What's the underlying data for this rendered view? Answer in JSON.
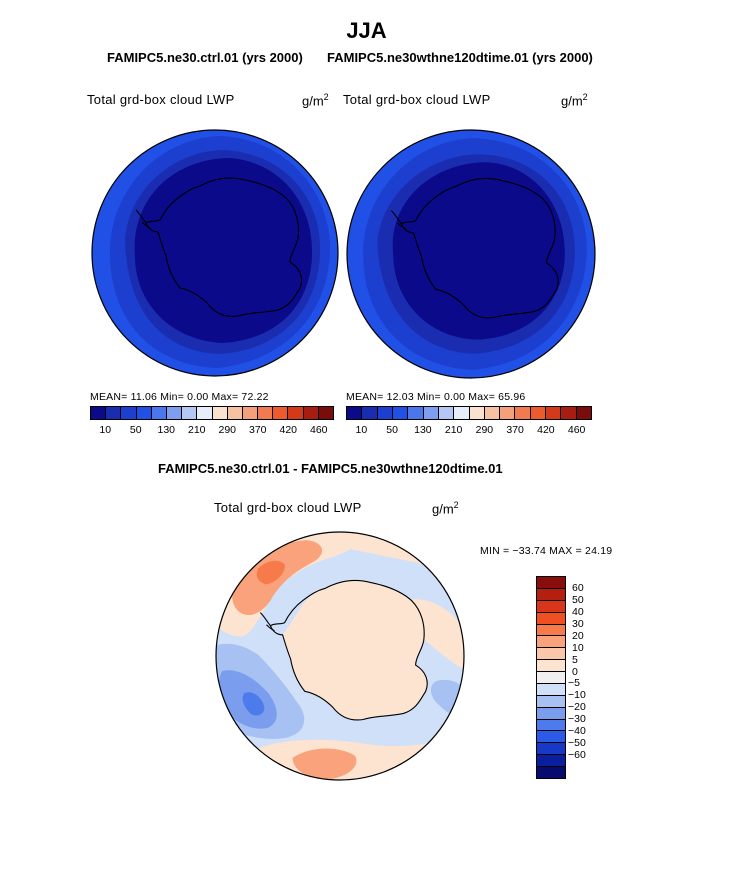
{
  "figure": {
    "season": "JJA",
    "case_titles": {
      "left": "FAMIPC5.ne30.ctrl.01 (yrs 2000)",
      "right": "FAMIPC5.ne30wthne120dtime.01 (yrs 2000)"
    },
    "diff_title": "FAMIPC5.ne30.ctrl.01 - FAMIPC5.ne30wthne120dtime.01"
  },
  "panels": {
    "left": {
      "variable": "Total grd-box cloud LWP",
      "units": "g/m",
      "units_exp": "2",
      "stats": "MEAN=  11.06  Min=   0.00  Max=  72.22"
    },
    "right": {
      "variable": "Total grd-box cloud LWP",
      "units": "g/m",
      "units_exp": "2",
      "stats": "MEAN=  12.03  Min=   0.00  Max=  65.96"
    },
    "diff": {
      "variable": "Total grd-box cloud LWP",
      "units": "g/m",
      "units_exp": "2",
      "stats": "MIN = −33.74 MAX =  24.19"
    }
  },
  "colorbars": {
    "abs": {
      "colors": [
        "#0a0a8a",
        "#1a2db0",
        "#1c3fd0",
        "#2050e6",
        "#4a78ec",
        "#7e9ff0",
        "#b5c8f4",
        "#e6eefa",
        "#fbe2cf",
        "#f7c2a2",
        "#f4a07a",
        "#f27a50",
        "#ec5a2e",
        "#d33a1a",
        "#a81d12",
        "#7a0c0c"
      ],
      "labels": [
        "10",
        "50",
        "130",
        "210",
        "290",
        "370",
        "420",
        "460"
      ]
    },
    "diff": {
      "colors": [
        "#8a0d0d",
        "#b51f0f",
        "#d9351a",
        "#f04f22",
        "#f77b4a",
        "#f9a27c",
        "#fbc7a8",
        "#fde4d1",
        "#f0f0f0",
        "#cfe0f8",
        "#a7c1f3",
        "#7a9ded",
        "#4d7beb",
        "#2a5ae6",
        "#1838c8",
        "#0b1f9e",
        "#070a6e"
      ],
      "labels": [
        "60",
        "50",
        "40",
        "30",
        "20",
        "10",
        "5",
        "0",
        "−5",
        "−10",
        "−20",
        "−30",
        "−40",
        "−50",
        "−60"
      ]
    }
  },
  "map_colors": {
    "abs_dark": "#0a0a8a",
    "abs_mid": "#1a2db0",
    "abs_outer": "#1c3fd0",
    "abs_edge": "#2050e6",
    "diff_base": "#cfe0f8",
    "diff_pos": "#fde4d1",
    "diff_pos2": "#f9a27c",
    "diff_pos3": "#f77b4a",
    "diff_neg": "#a7c1f3",
    "diff_neg2": "#7a9ded",
    "diff_neg3": "#4d7beb"
  }
}
